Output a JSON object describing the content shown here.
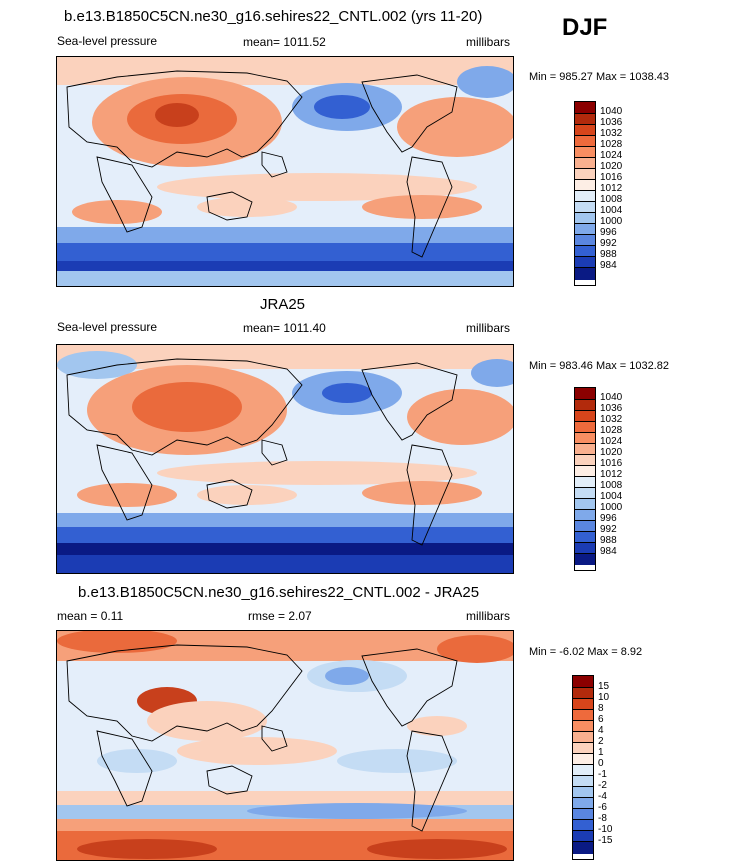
{
  "season": "DJF",
  "panels": [
    {
      "title": "b.e13.B1850C5CN.ne30_g16.sehires22_CNTL.002 (yrs 11-20)",
      "left_label": "Sea-level pressure",
      "center_label": "mean= 1011.52",
      "right_label": "millibars",
      "minmax": "Min = 985.27 Max = 1038.43",
      "colorbar": {
        "labels": [
          "1040",
          "1036",
          "1032",
          "1028",
          "1024",
          "1020",
          "1016",
          "1012",
          "1008",
          "1004",
          "1000",
          "996",
          "992",
          "988",
          "984"
        ],
        "colors": [
          "#8b0000",
          "#b22a0c",
          "#d7451b",
          "#ee6a3c",
          "#f88e62",
          "#f9b08f",
          "#fbd2bd",
          "#fdeee5",
          "#e2eef9",
          "#c4dcf4",
          "#a2c6ef",
          "#7fa9ea",
          "#5a86e0",
          "#3360d2",
          "#1b3cb4",
          "#0a1a84"
        ]
      }
    },
    {
      "title": "JRA25",
      "left_label": "Sea-level pressure",
      "center_label": "mean= 1011.40",
      "right_label": "millibars",
      "minmax": "Min = 983.46 Max = 1032.82",
      "colorbar": {
        "labels": [
          "1040",
          "1036",
          "1032",
          "1028",
          "1024",
          "1020",
          "1016",
          "1012",
          "1008",
          "1004",
          "1000",
          "996",
          "992",
          "988",
          "984"
        ],
        "colors": [
          "#8b0000",
          "#b22a0c",
          "#d7451b",
          "#ee6a3c",
          "#f88e62",
          "#f9b08f",
          "#fbd2bd",
          "#fdeee5",
          "#e2eef9",
          "#c4dcf4",
          "#a2c6ef",
          "#7fa9ea",
          "#5a86e0",
          "#3360d2",
          "#1b3cb4",
          "#0a1a84"
        ]
      }
    },
    {
      "title": "b.e13.B1850C5CN.ne30_g16.sehires22_CNTL.002 - JRA25",
      "left_label": "mean =   0.11",
      "center_label": "rmse =   2.07",
      "right_label": "millibars",
      "minmax": "Min =  -6.02 Max =   8.92",
      "colorbar": {
        "labels": [
          "15",
          "10",
          "8",
          "6",
          "4",
          "2",
          "1",
          "0",
          "-1",
          "-2",
          "-4",
          "-6",
          "-8",
          "-10",
          "-15"
        ],
        "colors": [
          "#8b0000",
          "#b22a0c",
          "#d7451b",
          "#ee6a3c",
          "#f88e62",
          "#f9b08f",
          "#fbd2bd",
          "#fdeee5",
          "#e2eef9",
          "#c4dcf4",
          "#a2c6ef",
          "#7fa9ea",
          "#5a86e0",
          "#3360d2",
          "#1b3cb4",
          "#0a1a84"
        ]
      }
    }
  ],
  "palette": {
    "ocean_neutral": "#e4eefa",
    "warm_light": "#fbd2bd",
    "warm_mid": "#f6a07a",
    "warm_strong": "#ea6a3c",
    "warm_deep": "#c8401c",
    "cool_light": "#c4dcf4",
    "cool_mid": "#7fa9ea",
    "cool_strong": "#3360d2",
    "cool_deep": "#0a1a84",
    "coast": "#000000"
  }
}
